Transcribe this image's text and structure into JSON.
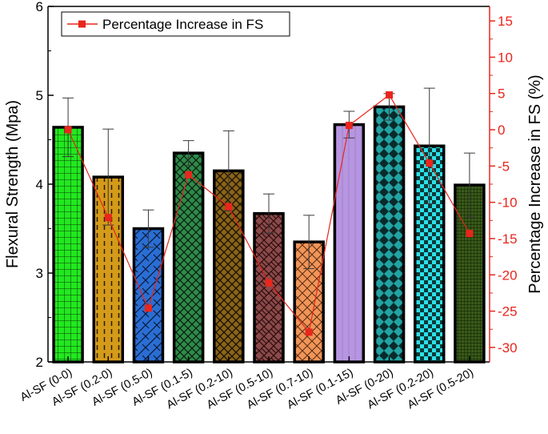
{
  "chart_data": {
    "type": "bar",
    "title": "",
    "categories": [
      "Al-SF (0-0)",
      "Al-SF (0.2-0)",
      "Al-SF (0.5-0)",
      "Al-SF (0.1-5)",
      "Al-SF (0.2-10)",
      "Al-SF (0.5-10)",
      "Al-SF (0.7-10)",
      "Al-SF (0.1-15)",
      "Al-SF (0-20)",
      "Al-SF (0.2-20)",
      "Al-SF (0.5-20)"
    ],
    "xlabel": "",
    "ylabel": "Flexural Strength (Mpa)",
    "ylim": [
      2,
      6
    ],
    "yticks": [
      "2",
      "3",
      "4",
      "5",
      "6"
    ],
    "series": [
      {
        "name": "Flexural Strength",
        "axis": "left",
        "values": [
          4.64,
          4.08,
          3.5,
          4.35,
          4.15,
          3.67,
          3.35,
          4.67,
          4.87,
          4.43,
          3.99
        ],
        "errors": [
          0.33,
          0.54,
          0.21,
          0.14,
          0.45,
          0.22,
          0.3,
          0.15,
          0.15,
          0.65,
          0.36
        ],
        "colors": [
          "#22e81f",
          "#d49a1a",
          "#2a6ed4",
          "#2f8a4a",
          "#8a6418",
          "#8b4a4a",
          "#f0955a",
          "#b796e0",
          "#22a3a3",
          "#2de0e8",
          "#3a5a1a"
        ]
      },
      {
        "name": "Percentage Increase in FS",
        "axis": "right",
        "type": "line",
        "values": [
          0,
          -12.1,
          -24.6,
          -6.2,
          -10.6,
          -21.1,
          -27.9,
          0.6,
          4.8,
          -4.6,
          -14.3
        ],
        "color": "#e8261c"
      }
    ],
    "y2label": "Percentage Increase in FS (%)",
    "y2lim": [
      -32,
      17
    ],
    "y2ticks": [
      "15",
      "10",
      "5",
      "0",
      "-5",
      "-10",
      "-15",
      "-20",
      "-25",
      "-30"
    ],
    "legend": {
      "position": "top-left",
      "entries": [
        "Percentage Increase in FS"
      ]
    }
  }
}
